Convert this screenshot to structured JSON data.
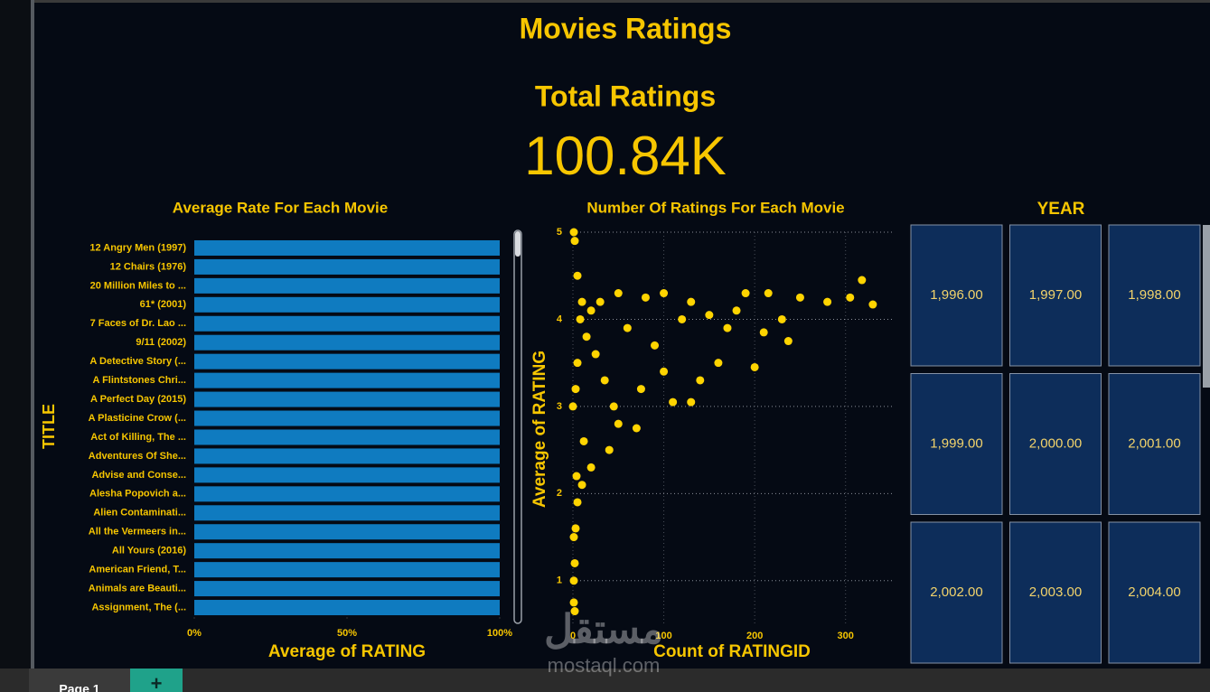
{
  "header": {
    "title": "Movies Ratings"
  },
  "kpi": {
    "label": "Total Ratings",
    "value": "100.84K"
  },
  "chart_data": [
    {
      "type": "bar",
      "orientation": "horizontal",
      "title": "Average Rate For Each Movie",
      "y_label": "TITLE",
      "x_label": "Average of RATING",
      "color": "#0f7bc0",
      "categories": [
        "12 Angry Men (1997)",
        "12 Chairs (1976)",
        "20 Million Miles to ...",
        "61* (2001)",
        "7 Faces of Dr. Lao ...",
        "9/11 (2002)",
        "A Detective Story (...",
        "A Flintstones Chri...",
        "A Perfect Day (2015)",
        "A Plasticine Crow (...",
        "Act of Killing, The ...",
        "Adventures Of She...",
        "Advise and Conse...",
        "Alesha Popovich a...",
        "Alien Contaminati...",
        "All the Vermeers in...",
        "All Yours (2016)",
        "American Friend, T...",
        "Animals are Beauti...",
        "Assignment, The (..."
      ],
      "values": [
        100,
        100,
        100,
        100,
        100,
        100,
        100,
        100,
        100,
        100,
        100,
        100,
        100,
        100,
        100,
        100,
        100,
        100,
        100,
        100
      ],
      "xlim": [
        0,
        100
      ],
      "xticks": [
        {
          "value": 0,
          "label": "0%"
        },
        {
          "value": 50,
          "label": "50%"
        },
        {
          "value": 100,
          "label": "100%"
        }
      ]
    },
    {
      "type": "scatter",
      "title": "Number Of Ratings For Each Movie",
      "x_label": "Count of RATINGID",
      "y_label": "Average of RATING",
      "color": "#ffd400",
      "grid": true,
      "x": [
        1,
        2,
        5,
        10,
        20,
        30,
        50,
        80,
        100,
        130,
        190,
        215,
        250,
        280,
        305,
        318,
        330,
        237,
        200,
        160,
        140,
        130,
        110,
        70,
        50,
        40,
        20,
        10,
        5,
        3,
        1,
        1,
        1,
        2,
        0,
        5,
        15,
        25,
        60,
        90,
        120,
        150,
        170,
        100,
        75,
        35,
        45,
        12,
        8,
        3,
        4,
        2,
        180,
        210,
        230
      ],
      "y": [
        5,
        4.9,
        4.5,
        4.2,
        4.1,
        4.2,
        4.3,
        4.25,
        4.3,
        4.2,
        4.3,
        4.3,
        4.25,
        4.2,
        4.25,
        4.45,
        4.17,
        3.75,
        3.45,
        3.5,
        3.3,
        3.05,
        3.05,
        2.75,
        2.8,
        2.5,
        2.3,
        2.1,
        1.9,
        1.6,
        1.5,
        1,
        0.75,
        0.65,
        3,
        3.5,
        3.8,
        3.6,
        3.9,
        3.7,
        4.0,
        4.05,
        3.9,
        3.4,
        3.2,
        3.3,
        3.0,
        2.6,
        4.0,
        3.2,
        2.2,
        1.2,
        4.1,
        3.85,
        4.0
      ],
      "xlim": [
        0,
        350
      ],
      "ylim": [
        0.5,
        5
      ],
      "xticks": [
        0,
        100,
        200,
        300
      ],
      "yticks": [
        1,
        2,
        3,
        4,
        5
      ]
    }
  ],
  "year_slicer": {
    "title": "YEAR",
    "tiles": [
      "1,996.00",
      "1,997.00",
      "1,998.00",
      "1,999.00",
      "2,000.00",
      "2,001.00",
      "2,002.00",
      "2,003.00",
      "2,004.00"
    ]
  },
  "footer": {
    "tab": "Page 1",
    "add": "+"
  },
  "watermark": {
    "arabic": "مستقل",
    "site": "mostaql.com"
  }
}
